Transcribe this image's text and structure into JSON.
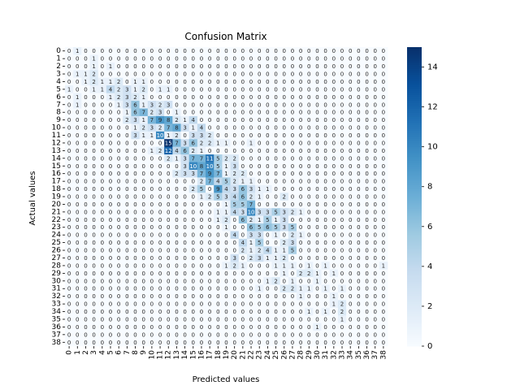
{
  "chart_data": {
    "type": "heatmap",
    "title": "Confusion Matrix",
    "xlabel": "Predicted values",
    "ylabel": "Actual values",
    "x_ticks": [
      "0",
      "1",
      "2",
      "3",
      "4",
      "5",
      "6",
      "7",
      "8",
      "9",
      "10",
      "11",
      "12",
      "13",
      "14",
      "15",
      "16",
      "17",
      "18",
      "19",
      "20",
      "21",
      "22",
      "23",
      "24",
      "25",
      "26",
      "27",
      "28",
      "29",
      "30",
      "31",
      "32",
      "33",
      "34",
      "35",
      "36",
      "37",
      "38"
    ],
    "y_ticks": [
      "0",
      "1",
      "2",
      "3",
      "4",
      "5",
      "6",
      "7",
      "8",
      "9",
      "10",
      "11",
      "12",
      "13",
      "14",
      "15",
      "16",
      "17",
      "18",
      "19",
      "20",
      "21",
      "22",
      "23",
      "24",
      "25",
      "26",
      "27",
      "28",
      "29",
      "30",
      "31",
      "32",
      "33",
      "34",
      "35",
      "36",
      "37",
      "38"
    ],
    "colorbar": {
      "min": 0,
      "max": 15,
      "ticks": [
        0,
        2,
        4,
        6,
        8,
        10,
        12,
        14
      ]
    },
    "colormap": "Blues",
    "annotated": true,
    "matrix": [
      [
        0,
        1,
        0,
        0,
        0,
        0,
        0,
        0,
        0,
        0,
        0,
        0,
        0,
        0,
        0,
        0,
        0,
        0,
        0,
        0,
        0,
        0,
        0,
        0,
        0,
        0,
        0,
        0,
        0,
        0,
        0,
        0,
        0,
        0,
        0,
        0,
        0,
        0,
        0
      ],
      [
        0,
        0,
        0,
        1,
        0,
        0,
        0,
        0,
        0,
        0,
        0,
        0,
        0,
        0,
        0,
        0,
        0,
        0,
        0,
        0,
        0,
        0,
        0,
        0,
        0,
        0,
        0,
        0,
        0,
        0,
        0,
        0,
        0,
        0,
        0,
        0,
        0,
        0,
        0
      ],
      [
        0,
        0,
        0,
        1,
        0,
        1,
        0,
        0,
        0,
        0,
        0,
        0,
        0,
        0,
        0,
        0,
        0,
        0,
        0,
        0,
        0,
        0,
        0,
        0,
        0,
        0,
        0,
        0,
        0,
        0,
        0,
        0,
        0,
        0,
        0,
        0,
        0,
        0,
        0
      ],
      [
        0,
        1,
        1,
        2,
        0,
        0,
        0,
        0,
        0,
        0,
        0,
        0,
        0,
        0,
        0,
        0,
        0,
        0,
        0,
        0,
        0,
        0,
        0,
        0,
        0,
        0,
        0,
        0,
        0,
        0,
        0,
        0,
        0,
        0,
        0,
        0,
        0,
        0,
        0
      ],
      [
        0,
        0,
        1,
        2,
        1,
        1,
        2,
        0,
        1,
        1,
        0,
        0,
        0,
        0,
        0,
        0,
        0,
        0,
        0,
        0,
        0,
        0,
        0,
        0,
        0,
        0,
        0,
        0,
        0,
        0,
        0,
        0,
        0,
        0,
        0,
        0,
        0,
        0,
        0
      ],
      [
        1,
        0,
        0,
        1,
        1,
        4,
        2,
        3,
        1,
        2,
        0,
        1,
        1,
        0,
        0,
        0,
        0,
        0,
        0,
        0,
        0,
        0,
        0,
        0,
        0,
        0,
        0,
        0,
        0,
        0,
        0,
        0,
        0,
        0,
        0,
        0,
        0,
        0,
        0
      ],
      [
        0,
        1,
        0,
        0,
        0,
        1,
        2,
        3,
        2,
        1,
        0,
        0,
        0,
        0,
        0,
        0,
        0,
        0,
        0,
        0,
        0,
        0,
        0,
        0,
        0,
        0,
        0,
        0,
        0,
        0,
        0,
        0,
        0,
        0,
        0,
        0,
        0,
        0,
        0
      ],
      [
        0,
        1,
        0,
        0,
        0,
        0,
        1,
        3,
        6,
        1,
        3,
        2,
        3,
        0,
        0,
        0,
        0,
        0,
        0,
        0,
        0,
        0,
        0,
        0,
        0,
        0,
        0,
        0,
        0,
        0,
        0,
        0,
        0,
        0,
        0,
        0,
        0,
        0,
        0
      ],
      [
        0,
        0,
        0,
        0,
        0,
        0,
        0,
        1,
        6,
        7,
        2,
        3,
        0,
        1,
        0,
        0,
        0,
        0,
        0,
        0,
        0,
        0,
        0,
        0,
        0,
        0,
        0,
        0,
        0,
        0,
        0,
        0,
        0,
        0,
        0,
        0,
        0,
        0,
        0
      ],
      [
        0,
        0,
        0,
        0,
        0,
        0,
        0,
        2,
        3,
        1,
        7,
        9,
        8,
        2,
        1,
        4,
        0,
        0,
        0,
        0,
        0,
        0,
        0,
        0,
        0,
        0,
        0,
        0,
        0,
        0,
        0,
        0,
        0,
        0,
        0,
        0,
        0,
        0,
        0
      ],
      [
        0,
        0,
        0,
        0,
        0,
        0,
        0,
        0,
        1,
        2,
        3,
        2,
        7,
        8,
        3,
        1,
        4,
        0,
        0,
        0,
        0,
        0,
        0,
        0,
        0,
        0,
        0,
        0,
        0,
        0,
        0,
        0,
        0,
        0,
        0,
        0,
        0,
        0,
        0
      ],
      [
        0,
        0,
        0,
        0,
        0,
        0,
        0,
        0,
        3,
        1,
        1,
        10,
        1,
        2,
        0,
        3,
        3,
        2,
        0,
        0,
        0,
        0,
        0,
        0,
        0,
        0,
        0,
        0,
        0,
        0,
        0,
        0,
        0,
        0,
        0,
        0,
        0,
        0,
        0
      ],
      [
        0,
        0,
        0,
        0,
        0,
        0,
        0,
        0,
        0,
        0,
        0,
        0,
        15,
        7,
        3,
        6,
        2,
        2,
        1,
        1,
        0,
        0,
        1,
        0,
        0,
        0,
        0,
        0,
        0,
        0,
        0,
        0,
        0,
        0,
        0,
        0,
        0,
        0,
        0
      ],
      [
        0,
        0,
        0,
        0,
        0,
        0,
        0,
        0,
        0,
        0,
        1,
        2,
        12,
        4,
        6,
        2,
        1,
        0,
        0,
        0,
        0,
        0,
        0,
        0,
        0,
        0,
        0,
        0,
        0,
        0,
        0,
        0,
        0,
        0,
        0,
        0,
        0,
        0,
        0
      ],
      [
        0,
        0,
        0,
        0,
        0,
        0,
        0,
        0,
        0,
        0,
        0,
        0,
        2,
        1,
        3,
        7,
        7,
        11,
        5,
        2,
        2,
        0,
        0,
        0,
        0,
        0,
        0,
        0,
        0,
        0,
        0,
        0,
        0,
        0,
        0,
        0,
        0,
        0,
        0
      ],
      [
        0,
        0,
        0,
        0,
        0,
        0,
        0,
        0,
        0,
        0,
        0,
        0,
        0,
        0,
        3,
        10,
        8,
        10,
        5,
        1,
        3,
        0,
        0,
        0,
        0,
        0,
        0,
        0,
        0,
        0,
        0,
        0,
        0,
        0,
        0,
        0,
        0,
        0,
        0
      ],
      [
        0,
        0,
        0,
        0,
        0,
        0,
        0,
        0,
        0,
        0,
        0,
        0,
        0,
        2,
        3,
        3,
        7,
        9,
        7,
        1,
        2,
        2,
        0,
        0,
        0,
        0,
        0,
        0,
        0,
        0,
        0,
        0,
        0,
        0,
        0,
        0,
        0,
        0,
        0
      ],
      [
        0,
        0,
        0,
        0,
        0,
        0,
        0,
        0,
        0,
        0,
        0,
        0,
        0,
        0,
        0,
        0,
        2,
        7,
        4,
        5,
        2,
        1,
        1,
        0,
        0,
        0,
        0,
        0,
        0,
        0,
        0,
        0,
        0,
        0,
        0,
        0,
        0,
        0,
        0
      ],
      [
        0,
        0,
        0,
        0,
        0,
        0,
        0,
        0,
        0,
        0,
        0,
        0,
        0,
        0,
        0,
        2,
        5,
        0,
        9,
        4,
        3,
        6,
        3,
        1,
        1,
        0,
        0,
        0,
        0,
        0,
        0,
        0,
        0,
        0,
        0,
        0,
        0,
        0,
        0
      ],
      [
        0,
        0,
        0,
        0,
        0,
        0,
        0,
        0,
        0,
        0,
        0,
        0,
        0,
        0,
        0,
        0,
        1,
        2,
        5,
        3,
        4,
        6,
        2,
        1,
        0,
        0,
        2,
        0,
        0,
        0,
        0,
        0,
        0,
        0,
        0,
        0,
        0,
        0,
        0
      ],
      [
        0,
        0,
        0,
        0,
        0,
        0,
        0,
        0,
        0,
        0,
        0,
        0,
        0,
        0,
        0,
        0,
        0,
        0,
        0,
        1,
        5,
        5,
        7,
        0,
        0,
        0,
        0,
        0,
        0,
        0,
        0,
        0,
        0,
        0,
        0,
        0,
        0,
        0,
        0
      ],
      [
        0,
        0,
        0,
        0,
        0,
        0,
        0,
        0,
        0,
        0,
        0,
        0,
        0,
        0,
        0,
        0,
        0,
        0,
        1,
        1,
        4,
        3,
        10,
        3,
        3,
        5,
        3,
        2,
        1,
        0,
        0,
        0,
        0,
        0,
        0,
        0,
        0,
        0,
        0
      ],
      [
        0,
        0,
        0,
        0,
        0,
        0,
        0,
        0,
        0,
        0,
        0,
        0,
        0,
        0,
        0,
        0,
        0,
        0,
        1,
        2,
        0,
        6,
        2,
        1,
        5,
        1,
        3,
        0,
        0,
        0,
        0,
        0,
        0,
        0,
        0,
        0,
        0,
        0,
        0
      ],
      [
        0,
        0,
        0,
        0,
        0,
        0,
        0,
        0,
        0,
        0,
        0,
        0,
        0,
        0,
        0,
        0,
        0,
        0,
        0,
        1,
        0,
        0,
        6,
        5,
        6,
        5,
        3,
        5,
        0,
        0,
        0,
        0,
        0,
        0,
        0,
        0,
        0,
        0,
        0
      ],
      [
        0,
        0,
        0,
        0,
        0,
        0,
        0,
        0,
        0,
        0,
        0,
        0,
        0,
        0,
        0,
        0,
        0,
        0,
        0,
        0,
        4,
        0,
        3,
        3,
        0,
        1,
        0,
        2,
        1,
        0,
        0,
        0,
        0,
        0,
        0,
        0,
        0,
        0,
        0
      ],
      [
        0,
        0,
        0,
        0,
        0,
        0,
        0,
        0,
        0,
        0,
        0,
        0,
        0,
        0,
        0,
        0,
        0,
        0,
        0,
        0,
        0,
        4,
        1,
        5,
        0,
        0,
        2,
        3,
        0,
        0,
        0,
        0,
        0,
        0,
        0,
        0,
        0,
        0,
        0
      ],
      [
        0,
        0,
        0,
        0,
        0,
        0,
        0,
        0,
        0,
        0,
        0,
        0,
        0,
        0,
        0,
        0,
        0,
        0,
        0,
        0,
        0,
        2,
        1,
        2,
        4,
        1,
        1,
        5,
        0,
        0,
        0,
        0,
        0,
        0,
        0,
        0,
        0,
        0,
        0
      ],
      [
        0,
        0,
        0,
        0,
        0,
        0,
        0,
        0,
        0,
        0,
        0,
        0,
        0,
        0,
        0,
        0,
        0,
        0,
        0,
        0,
        3,
        0,
        2,
        3,
        1,
        1,
        2,
        0,
        0,
        0,
        0,
        0,
        0,
        0,
        0,
        0,
        0,
        0,
        0
      ],
      [
        0,
        0,
        0,
        0,
        0,
        0,
        0,
        0,
        0,
        0,
        0,
        0,
        0,
        0,
        0,
        0,
        0,
        0,
        0,
        1,
        2,
        1,
        0,
        0,
        0,
        1,
        1,
        1,
        0,
        1,
        0,
        1,
        0,
        0,
        0,
        0,
        0,
        0,
        1
      ],
      [
        0,
        0,
        0,
        0,
        0,
        0,
        0,
        0,
        0,
        0,
        0,
        0,
        0,
        0,
        0,
        0,
        0,
        0,
        0,
        0,
        0,
        0,
        0,
        0,
        0,
        0,
        1,
        0,
        2,
        2,
        1,
        0,
        1,
        0,
        0,
        0,
        0,
        0,
        0
      ],
      [
        0,
        0,
        0,
        0,
        0,
        0,
        0,
        0,
        0,
        0,
        0,
        0,
        0,
        0,
        0,
        0,
        0,
        0,
        0,
        0,
        0,
        0,
        0,
        0,
        1,
        2,
        0,
        1,
        0,
        0,
        1,
        0,
        0,
        0,
        0,
        0,
        0,
        0,
        0
      ],
      [
        0,
        0,
        0,
        0,
        0,
        0,
        0,
        0,
        0,
        0,
        0,
        0,
        0,
        0,
        0,
        0,
        0,
        0,
        0,
        0,
        0,
        0,
        0,
        1,
        0,
        0,
        2,
        2,
        1,
        1,
        0,
        1,
        0,
        1,
        0,
        0,
        0,
        0,
        0
      ],
      [
        0,
        0,
        0,
        0,
        0,
        0,
        0,
        0,
        0,
        0,
        0,
        0,
        0,
        0,
        0,
        0,
        0,
        0,
        0,
        0,
        0,
        0,
        0,
        0,
        0,
        0,
        0,
        0,
        1,
        0,
        0,
        0,
        1,
        0,
        0,
        0,
        0,
        0,
        0
      ],
      [
        0,
        0,
        0,
        0,
        0,
        0,
        0,
        0,
        0,
        0,
        0,
        0,
        0,
        0,
        0,
        0,
        0,
        0,
        0,
        0,
        0,
        0,
        0,
        0,
        0,
        0,
        0,
        0,
        0,
        0,
        0,
        0,
        1,
        2,
        0,
        0,
        0,
        0,
        0
      ],
      [
        0,
        0,
        0,
        0,
        0,
        0,
        0,
        0,
        0,
        0,
        0,
        0,
        0,
        0,
        0,
        0,
        0,
        0,
        0,
        0,
        0,
        0,
        0,
        0,
        0,
        0,
        0,
        0,
        0,
        1,
        0,
        1,
        0,
        2,
        0,
        0,
        0,
        0,
        0
      ],
      [
        0,
        0,
        0,
        0,
        0,
        0,
        0,
        0,
        0,
        0,
        0,
        0,
        0,
        0,
        0,
        0,
        0,
        0,
        0,
        0,
        0,
        0,
        0,
        0,
        0,
        0,
        0,
        0,
        0,
        0,
        0,
        0,
        0,
        1,
        0,
        0,
        0,
        0,
        0
      ],
      [
        0,
        0,
        0,
        0,
        0,
        0,
        0,
        0,
        0,
        0,
        0,
        0,
        0,
        0,
        0,
        0,
        0,
        0,
        0,
        0,
        0,
        0,
        0,
        0,
        0,
        0,
        0,
        0,
        0,
        0,
        1,
        0,
        0,
        0,
        0,
        0,
        0,
        0,
        0
      ],
      [
        0,
        0,
        0,
        0,
        0,
        0,
        0,
        0,
        0,
        0,
        0,
        0,
        0,
        0,
        0,
        0,
        0,
        0,
        0,
        0,
        0,
        0,
        0,
        0,
        0,
        0,
        0,
        0,
        0,
        0,
        0,
        0,
        0,
        0,
        0,
        0,
        0,
        0,
        0
      ],
      [
        0,
        0,
        0,
        0,
        0,
        0,
        0,
        0,
        0,
        0,
        0,
        0,
        0,
        0,
        0,
        0,
        0,
        0,
        0,
        0,
        0,
        0,
        0,
        0,
        0,
        0,
        0,
        0,
        0,
        0,
        0,
        0,
        0,
        0,
        0,
        0,
        0,
        0,
        0
      ]
    ]
  }
}
